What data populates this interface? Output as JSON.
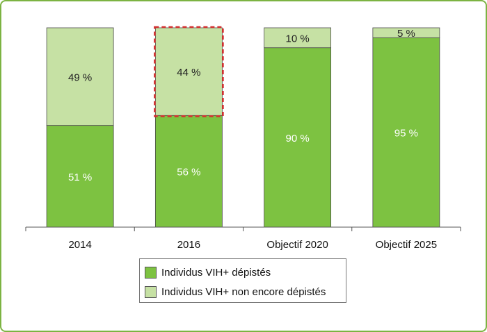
{
  "chart_data": {
    "type": "bar",
    "stacked": true,
    "categories": [
      "2014",
      "2016",
      "Objectif 2020",
      "Objectif 2025"
    ],
    "series": [
      {
        "name": "Individus VIH+ dépistés",
        "values": [
          51,
          56,
          90,
          95
        ],
        "labels": [
          "51 %",
          "56 %",
          "90 %",
          "95 %"
        ],
        "color": "#7dc241",
        "label_color": "#ffffff"
      },
      {
        "name": "Individus VIH+ non encore dépistés",
        "values": [
          49,
          44,
          10,
          5
        ],
        "labels": [
          "49 %",
          "44 %",
          "10 %",
          "5 %"
        ],
        "color": "#c6e1a4",
        "label_color": "#222222"
      }
    ],
    "ylim": [
      0,
      100
    ],
    "highlight": {
      "category": "2016",
      "series": "Individus VIH+ non encore dépistés",
      "style": "dashed",
      "color": "#d32f2f"
    },
    "legend_placement": "bottom",
    "grid": false,
    "frame_color": "#7cb342"
  }
}
